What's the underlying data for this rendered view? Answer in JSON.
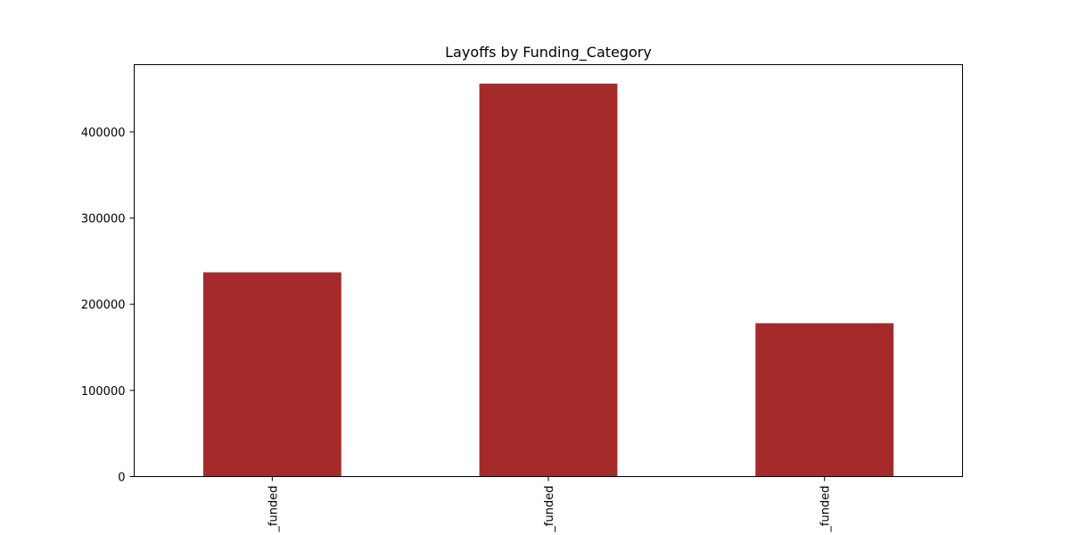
{
  "chart_data": {
    "type": "bar",
    "title": "Layoffs by Funding_Category",
    "categories": [
      "_funded",
      "_funded",
      "_funded"
    ],
    "values": [
      237000,
      456000,
      178000
    ],
    "ylim": [
      0,
      478000
    ],
    "yticks": [
      0,
      100000,
      200000,
      300000,
      400000
    ],
    "ytick_labels": [
      "0",
      "100000",
      "200000",
      "300000",
      "400000"
    ],
    "xlabel": "",
    "ylabel": "",
    "grid": false,
    "bar_color": "#a52a2a"
  }
}
